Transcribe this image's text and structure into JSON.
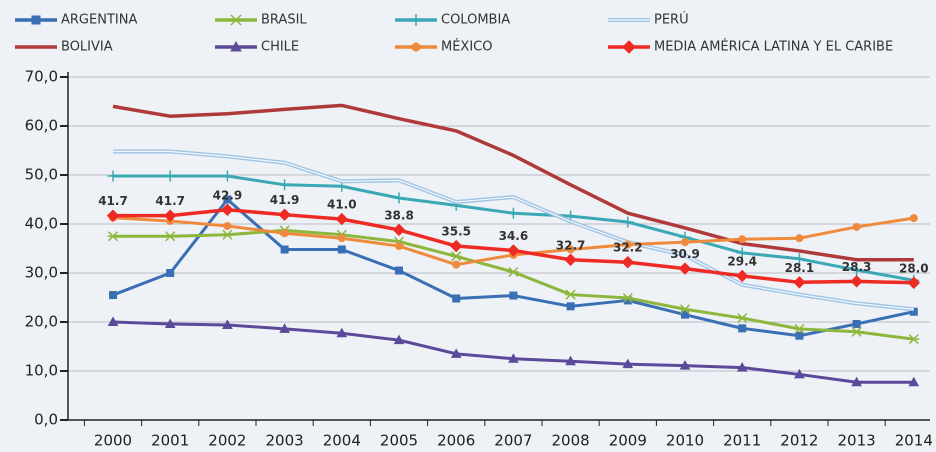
{
  "chart_data": {
    "type": "line",
    "categories": [
      "2000",
      "2001",
      "2002",
      "2003",
      "2004",
      "2005",
      "2006",
      "2007",
      "2008",
      "2009",
      "2010",
      "2011",
      "2012",
      "2013",
      "2014"
    ],
    "ylim": [
      0,
      70
    ],
    "yticks": [
      {
        "value": 0,
        "label": "0,0"
      },
      {
        "value": 10,
        "label": "10,0"
      },
      {
        "value": 20,
        "label": "20,0"
      },
      {
        "value": 30,
        "label": "30,0"
      },
      {
        "value": 40,
        "label": "40,0"
      },
      {
        "value": 50,
        "label": "50,0"
      },
      {
        "value": 60,
        "label": "60,0"
      },
      {
        "value": 70,
        "label": "70,0"
      }
    ],
    "grid": true,
    "series": [
      {
        "name": "ARGENTINA",
        "color": "#3a6fb5",
        "marker": "square",
        "values": [
          25.5,
          30,
          45,
          34.8,
          34.8,
          30.5,
          24.8,
          25.4,
          23.2,
          24.4,
          21.5,
          18.7,
          17.2,
          19.6,
          22.1
        ]
      },
      {
        "name": "BRASIL",
        "color": "#8cb63c",
        "marker": "asterisk",
        "values": [
          37.5,
          37.5,
          37.8,
          38.7,
          37.8,
          36.4,
          33.4,
          30.2,
          25.6,
          24.9,
          22.6,
          20.8,
          18.6,
          18,
          16.5
        ]
      },
      {
        "name": "COLOMBIA",
        "color": "#3aa8b5",
        "marker": "plus",
        "values": [
          49.8,
          49.8,
          49.8,
          48,
          47.7,
          45.3,
          43.8,
          42.2,
          41.6,
          40.4,
          37.3,
          34.1,
          32.9,
          30.6,
          28.5
        ]
      },
      {
        "name": "PERÚ",
        "color": "#9fc4e4",
        "marker": "double",
        "values": [
          54.8,
          54.8,
          53.8,
          52.5,
          48.7,
          48.9,
          44.5,
          45.5,
          40.5,
          36.3,
          33.6,
          27.6,
          25.6,
          23.8,
          22.6
        ]
      },
      {
        "name": "BOLIVIA",
        "color": "#b03a3a",
        "marker": "none",
        "values": [
          64,
          62,
          62.5,
          63.4,
          64.2,
          61.5,
          59,
          54,
          48,
          42.2,
          39.2,
          36,
          34.5,
          32.7,
          32.7
        ]
      },
      {
        "name": "CHILE",
        "color": "#5b4a9a",
        "marker": "triangle",
        "values": [
          20,
          19.6,
          19.4,
          18.6,
          17.7,
          16.3,
          13.5,
          12.5,
          12,
          11.4,
          11.1,
          10.7,
          9.3,
          7.7,
          7.7
        ]
      },
      {
        "name": "MÉXICO",
        "color": "#ef8a3c",
        "marker": "circle",
        "values": [
          41.3,
          40.6,
          39.6,
          38.1,
          37.1,
          35.5,
          31.7,
          33.7,
          34.8,
          35.8,
          36.3,
          36.9,
          37.1,
          39.4,
          41.2
        ]
      },
      {
        "name": "MEDIA AMÉRICA LATINA Y EL CARIBE",
        "color": "#ee2a24",
        "marker": "diamond",
        "values": [
          41.7,
          41.7,
          42.9,
          41.9,
          41.0,
          38.8,
          35.5,
          34.6,
          32.7,
          32.2,
          30.9,
          29.4,
          28.1,
          28.3,
          28.0
        ],
        "value_labels": [
          "41.7",
          "41.7",
          "42.9",
          "41.9",
          "41.0",
          "38.8",
          "35.5",
          "34.6",
          "32.7",
          "32.2",
          "30.9",
          "29.4",
          "28.1",
          "28.3",
          "28.0"
        ]
      }
    ]
  }
}
